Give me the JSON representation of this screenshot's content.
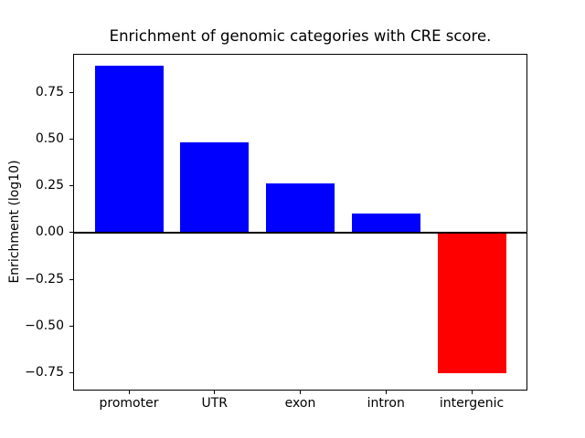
{
  "chart_data": {
    "type": "bar",
    "title": "Enrichment of genomic categories with CRE score.",
    "xlabel": "",
    "ylabel": "Enrichment (log10)",
    "categories": [
      "promoter",
      "UTR",
      "exon",
      "intron",
      "intergenic"
    ],
    "values": [
      0.89,
      0.48,
      0.26,
      0.1,
      -0.75
    ],
    "series": [
      {
        "name": "Enrichment (log10)",
        "values": [
          0.89,
          0.48,
          0.26,
          0.1,
          -0.75
        ]
      }
    ],
    "positive_color": "#0000ff",
    "negative_color": "#ff0000",
    "bar_colors": [
      "#0000ff",
      "#0000ff",
      "#0000ff",
      "#0000ff",
      "#ff0000"
    ],
    "ylim": [
      -0.84,
      0.95
    ],
    "yticks": [
      0.75,
      0.5,
      0.25,
      0,
      -0.25,
      -0.5,
      -0.75
    ],
    "ytick_labels": [
      "0.75",
      "0.50",
      "0.25",
      "0.00",
      "−0.25",
      "−0.50",
      "−0.75"
    ],
    "zero_line": true,
    "grid": false,
    "legend": null,
    "background_color": "#ffffff",
    "text_color": "#000000",
    "spine_color": "#000000"
  }
}
